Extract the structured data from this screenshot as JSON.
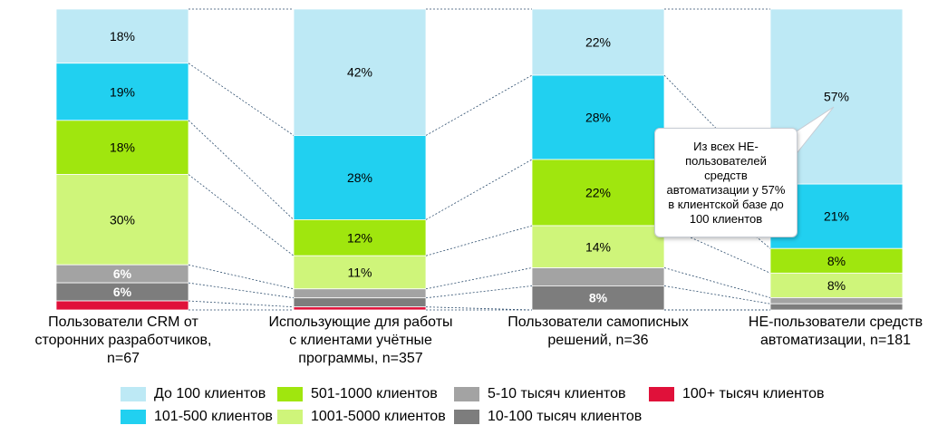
{
  "chart_data": {
    "type": "bar",
    "stacked": true,
    "normalized": true,
    "categories": [
      "Пользователи CRM от сторонних разработчиков, n=67",
      "Использующие для работы с клиентами учётные программы, n=357",
      "Пользователи самописных решений, n=36",
      "НЕ-пользователи средств автоматизации, n=181"
    ],
    "category_lines": [
      [
        "Пользователи CRM от",
        "сторонних разработчиков, n=67"
      ],
      [
        "Использующие для работы",
        "с клиентами учётные",
        "программы, n=357"
      ],
      [
        "Пользователи самописных",
        "решений, n=36"
      ],
      [
        "НЕ-пользователи средств",
        "автоматизации, n=181"
      ]
    ],
    "series": [
      {
        "name": "До 100 клиентов",
        "color": "#bde9f5",
        "values": [
          18,
          42,
          22,
          57
        ]
      },
      {
        "name": "101-500 клиентов",
        "color": "#21d0f0",
        "values": [
          19,
          28,
          28,
          21
        ]
      },
      {
        "name": "501-1000 клиентов",
        "color": "#a0e60e",
        "values": [
          18,
          12,
          22,
          8
        ]
      },
      {
        "name": "1001-5000 клиентов",
        "color": "#cff57a",
        "values": [
          30,
          11,
          14,
          8
        ]
      },
      {
        "name": "5-10 тысяч клиентов",
        "color": "#a3a3a3",
        "values": [
          6,
          3,
          6,
          2
        ]
      },
      {
        "name": "10-100 тысяч клиентов",
        "color": "#7d7d7d",
        "values": [
          6,
          3,
          8,
          2
        ]
      },
      {
        "name": "100+ тысяч клиентов",
        "color": "#e0113a",
        "values": [
          3,
          1,
          0,
          0
        ]
      }
    ],
    "data_labels": [
      [
        "18%",
        "42%",
        "22%",
        "57%"
      ],
      [
        "19%",
        "28%",
        "28%",
        "21%"
      ],
      [
        "18%",
        "12%",
        "22%",
        "8%"
      ],
      [
        "30%",
        "11%",
        "14%",
        "8%"
      ],
      [
        "6%",
        "",
        "",
        ""
      ],
      [
        "6%",
        "",
        "8%",
        ""
      ],
      [
        "",
        "",
        "",
        ""
      ]
    ],
    "ylim": [
      0,
      100
    ],
    "grid": false,
    "legend_position": "bottom",
    "connector_lines": "dashed",
    "annotation": "Из всех НЕ-пользователей средств автоматизации у 57% в клиентской базе до 100 клиентов"
  },
  "annotation_lines": [
    "Из всех НЕ-",
    "пользователей",
    "средств",
    "автоматизации у 57%",
    "в клиентской базе до",
    "100 клиентов"
  ]
}
